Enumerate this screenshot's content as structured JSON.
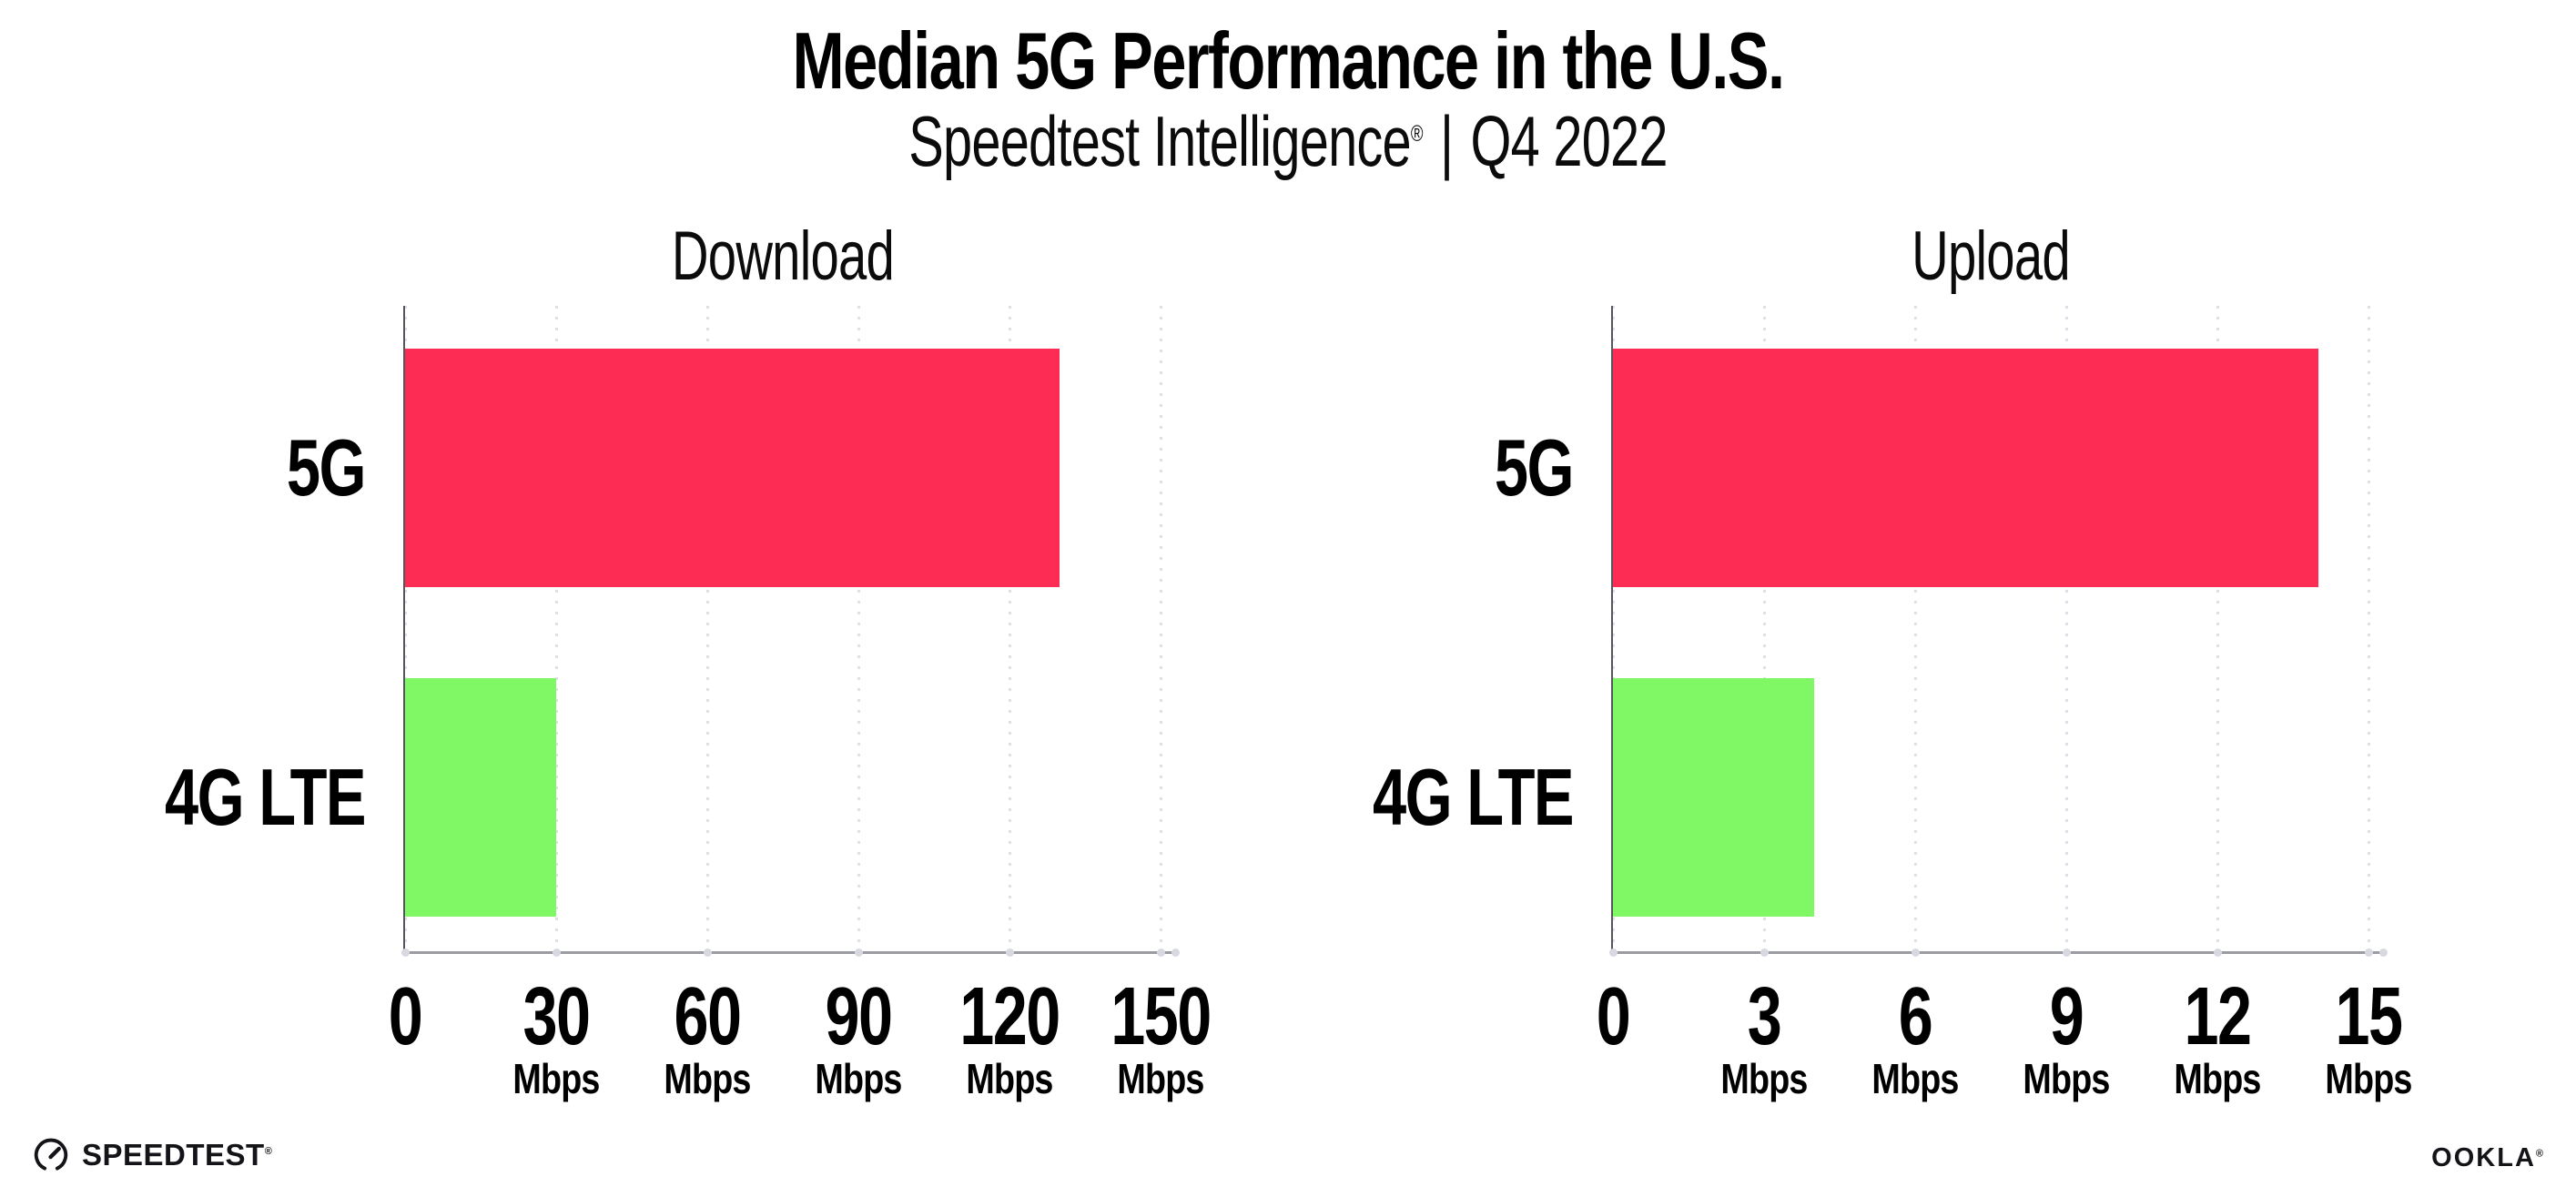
{
  "header": {
    "title": "Median 5G Performance in the U.S.",
    "subtitle": {
      "brand": "Speedtest Intelligence",
      "reg": "®",
      "divider": "|",
      "period": "Q4 2022"
    }
  },
  "chart_data": [
    {
      "type": "bar",
      "orientation": "horizontal",
      "title": "Download",
      "categories": [
        "5G",
        "4G LTE"
      ],
      "values": [
        130,
        30
      ],
      "unit": "Mbps",
      "xlim": [
        0,
        150
      ],
      "xticks": [
        0,
        30,
        60,
        90,
        120,
        150
      ],
      "xtick_unit_label": "Mbps",
      "unit_shown_on_zero_tick": false,
      "bar_colors": [
        "#FD2C55",
        "#80F865"
      ],
      "grid": "dotted-vertical",
      "legend": "none"
    },
    {
      "type": "bar",
      "orientation": "horizontal",
      "title": "Upload",
      "categories": [
        "5G",
        "4G LTE"
      ],
      "values": [
        14,
        4
      ],
      "unit": "Mbps",
      "xlim": [
        0,
        15
      ],
      "xticks": [
        0,
        3,
        6,
        9,
        12,
        15
      ],
      "xtick_unit_label": "Mbps",
      "unit_shown_on_zero_tick": false,
      "bar_colors": [
        "#FD2C55",
        "#80F865"
      ],
      "grid": "dotted-vertical",
      "legend": "none"
    }
  ],
  "colors": {
    "bar_5g": "#FD2C55",
    "bar_4g_lte": "#80F865",
    "gridline": "#DFDFE9",
    "x_axis": "#9B9BA2",
    "y_axis": "#55555C",
    "tick_dot": "#D8D8E1",
    "text": "#000000"
  },
  "footer": {
    "speedtest": {
      "label": "SPEEDTEST",
      "reg": "®"
    },
    "ookla": {
      "label": "OOKLA",
      "reg": "®"
    }
  }
}
